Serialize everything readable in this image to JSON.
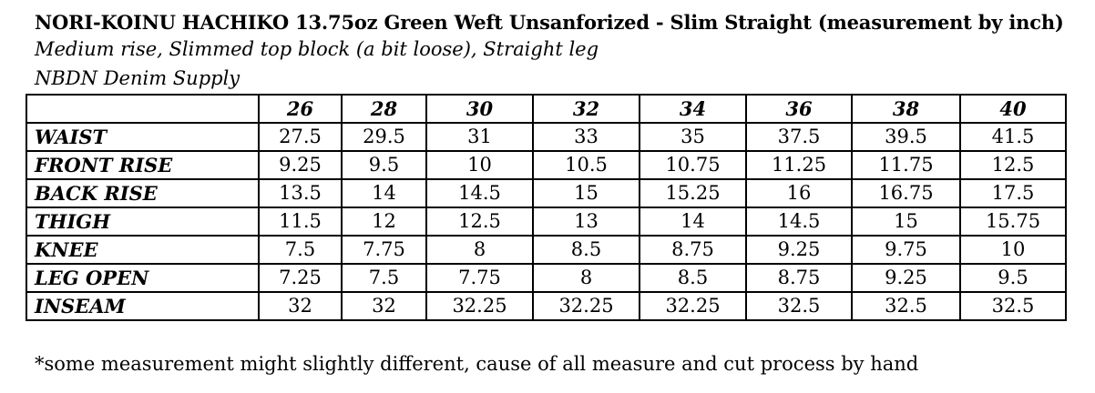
{
  "title": "NORI-KOINU HACHIKO 13.75oz Green Weft Unsanforized - Slim Straight (measurement by inch)",
  "subtitle": "Medium rise, Slimmed top block (a bit loose), Straight leg",
  "supplier": "NBDN Denim Supply",
  "table": {
    "corner": "",
    "sizes": [
      "26",
      "28",
      "30",
      "32",
      "34",
      "36",
      "38",
      "40"
    ],
    "rows": [
      {
        "label": "WAIST",
        "values": [
          "27.5",
          "29.5",
          "31",
          "33",
          "35",
          "37.5",
          "39.5",
          "41.5"
        ]
      },
      {
        "label": "FRONT RISE",
        "values": [
          "9.25",
          "9.5",
          "10",
          "10.5",
          "10.75",
          "11.25",
          "11.75",
          "12.5"
        ]
      },
      {
        "label": "BACK RISE",
        "values": [
          "13.5",
          "14",
          "14.5",
          "15",
          "15.25",
          "16",
          "16.75",
          "17.5"
        ]
      },
      {
        "label": "THIGH",
        "values": [
          "11.5",
          "12",
          "12.5",
          "13",
          "14",
          "14.5",
          "15",
          "15.75"
        ]
      },
      {
        "label": "KNEE",
        "values": [
          "7.5",
          "7.75",
          "8",
          "8.5",
          "8.75",
          "9.25",
          "9.75",
          "10"
        ]
      },
      {
        "label": "LEG OPEN",
        "values": [
          "7.25",
          "7.5",
          "7.75",
          "8",
          "8.5",
          "8.75",
          "9.25",
          "9.5"
        ]
      },
      {
        "label": "INSEAM",
        "values": [
          "32",
          "32",
          "32.25",
          "32.25",
          "32.25",
          "32.5",
          "32.5",
          "32.5"
        ]
      }
    ]
  },
  "footnote": "*some measurement might slightly different, cause of all measure and cut process by hand"
}
